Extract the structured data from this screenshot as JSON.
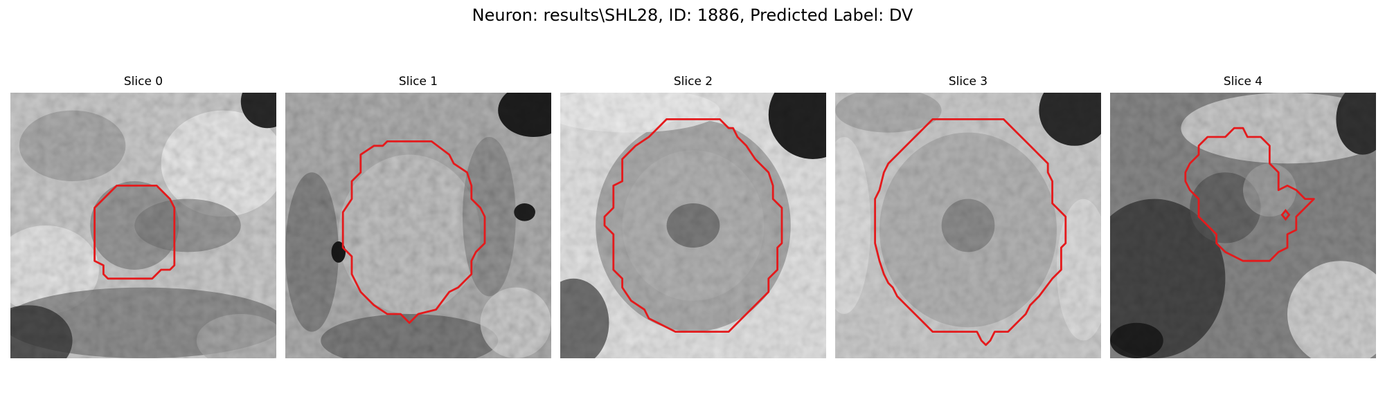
{
  "title": "Neuron: results\\SHL28, ID: 1886, Predicted Label: DV",
  "colors": {
    "contour": "#e41a1c",
    "background": "#ffffff"
  },
  "panels": [
    {
      "title": "Slice 0"
    },
    {
      "title": "Slice 1"
    },
    {
      "title": "Slice 2"
    },
    {
      "title": "Slice 3"
    },
    {
      "title": "Slice 4"
    }
  ]
}
